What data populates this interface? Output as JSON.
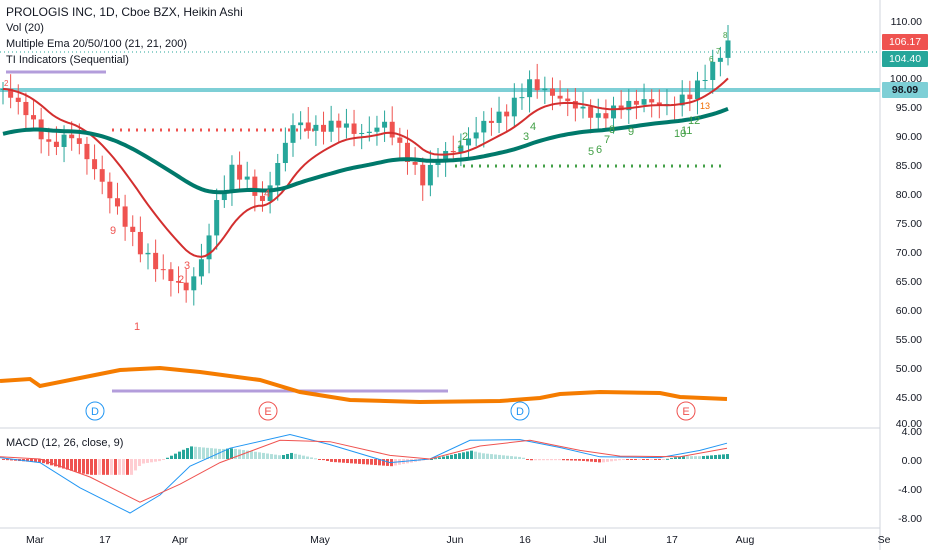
{
  "legend": {
    "title": "PROLOGIS INC, 1D, Cboe BZX, Heikin Ashi",
    "vol": "Vol (20)",
    "ema": "Multiple Ema 20/50/100 (21, 21, 200)",
    "ti": "TI Indicators (Sequential)",
    "macd": "MACD (12, 26, close, 9)"
  },
  "price_axis": [
    "110.00",
    "105.00",
    "100.00",
    "95.00",
    "90.00",
    "85.00",
    "80.00",
    "75.00",
    "70.00",
    "65.00",
    "60.00",
    "55.00",
    "50.00",
    "45.00",
    "40.00"
  ],
  "macd_axis": [
    "4.00",
    "0.00",
    "-4.00",
    "-8.00"
  ],
  "time_axis": [
    "Mar",
    "17",
    "Apr",
    "May",
    "Jun",
    "16",
    "Jul",
    "17",
    "Aug",
    "Se"
  ],
  "tags": {
    "price_red": "106.17",
    "price_green": "104.40",
    "level": "98.09"
  },
  "events": [
    "D",
    "E",
    "D",
    "E"
  ],
  "seq_labels": {
    "red": [
      "1",
      "2",
      "3",
      "4",
      "9",
      "2"
    ],
    "green": [
      "1",
      "2",
      "3",
      "4",
      "5",
      "6",
      "7",
      "8",
      "9",
      "10",
      "11",
      "12",
      "13"
    ],
    "top": [
      "8",
      "7",
      "6"
    ]
  },
  "colors": {
    "up": "#26a69a",
    "down": "#ef5350",
    "ema_short": "#d32f2f",
    "ema_long": "#00796b",
    "volume_ma": "#f57c00",
    "level_line": "#7ecfd6",
    "macd_line": "#2196f3",
    "signal_line": "#ef5350"
  }
}
